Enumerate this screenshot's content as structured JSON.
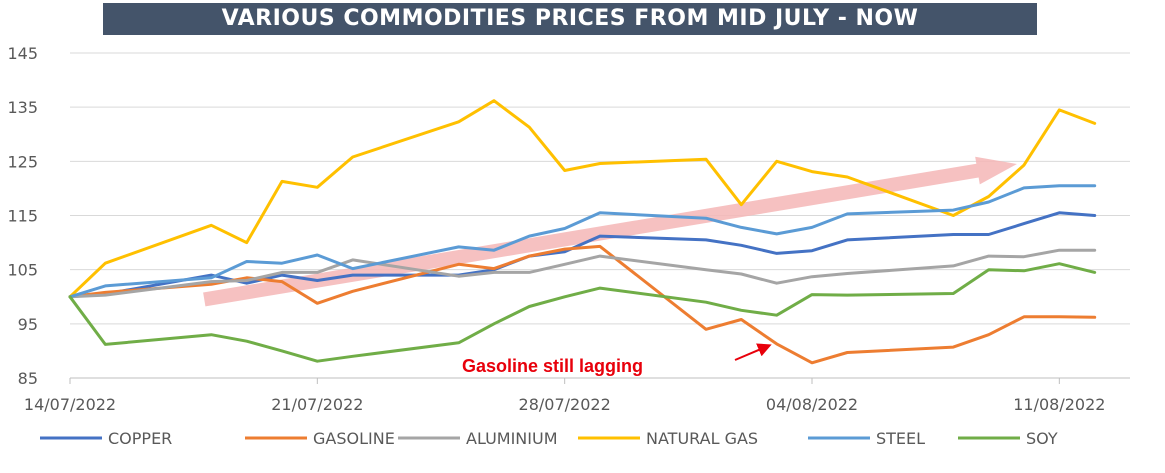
{
  "chart_data": {
    "type": "line",
    "title": "VARIOUS COMMODITIES PRICES FROM MID JULY - NOW",
    "xlabel": "",
    "ylabel": "",
    "ylim": [
      85,
      145
    ],
    "y_ticks": [
      85,
      95,
      105,
      115,
      125,
      135,
      145
    ],
    "x_tick_labels": [
      "14/07/2022",
      "21/07/2022",
      "28/07/2022",
      "04/08/2022",
      "11/08/2022"
    ],
    "x_ticks": [
      0,
      7,
      14,
      21,
      28
    ],
    "x": [
      0,
      1,
      4,
      5,
      6,
      7,
      8,
      11,
      12,
      13,
      14,
      15,
      18,
      19,
      20,
      21,
      22,
      25,
      26,
      27,
      28,
      29
    ],
    "series": [
      {
        "name": "COPPER",
        "color": "#4472c4",
        "values": [
          100,
          100.5,
          104,
          102.5,
          104,
          103,
          104,
          104,
          105,
          107.5,
          108.3,
          111.2,
          110.5,
          109.5,
          108,
          108.5,
          110.5,
          111.5,
          111.5,
          113.5,
          115.5,
          115
        ]
      },
      {
        "name": "GASOLINE",
        "color": "#ed7d31",
        "values": [
          100,
          100.8,
          102.3,
          103.5,
          102.8,
          98.8,
          101,
          106,
          105.2,
          107.5,
          108.8,
          109.3,
          94,
          95.8,
          91.3,
          87.8,
          89.7,
          90.7,
          93,
          96.3,
          96.3,
          96.2
        ]
      },
      {
        "name": "ALUMINIUM",
        "color": "#a5a5a5",
        "values": [
          100,
          100.3,
          102.8,
          103,
          104.5,
          104.5,
          106.8,
          103.8,
          104.5,
          104.5,
          106,
          107.5,
          105,
          104.2,
          102.5,
          103.7,
          104.3,
          105.7,
          107.5,
          107.4,
          108.6,
          108.6
        ]
      },
      {
        "name": "NATURAL GAS",
        "color": "#ffc000",
        "values": [
          100,
          106.2,
          113.2,
          110,
          121.3,
          120.2,
          125.8,
          132.3,
          136.2,
          131.3,
          123.3,
          124.6,
          125.4,
          117,
          125,
          123.1,
          122.1,
          115,
          118.5,
          124.3,
          134.5,
          132
        ]
      },
      {
        "name": "STEEL",
        "color": "#5b9bd5",
        "values": [
          100,
          102,
          103.5,
          106.5,
          106.2,
          107.7,
          105.2,
          109.2,
          108.6,
          111.2,
          112.6,
          115.5,
          114.5,
          112.8,
          111.6,
          112.8,
          115.3,
          116,
          117.5,
          120.1,
          120.5,
          120.5
        ]
      },
      {
        "name": "SOY",
        "color": "#70ad47",
        "values": [
          100,
          91.2,
          93,
          91.8,
          90,
          88.1,
          89,
          91.5,
          95,
          98.2,
          100,
          101.6,
          99,
          97.5,
          96.6,
          100.4,
          100.3,
          100.6,
          105,
          104.8,
          106.1,
          104.5
        ]
      }
    ],
    "annotations": [
      {
        "text": "Gasoline still lagging",
        "color": "#e8000b"
      }
    ],
    "trend_arrow_color": "#f4b6b6",
    "grid": "horizontal",
    "legend_position": "bottom"
  }
}
